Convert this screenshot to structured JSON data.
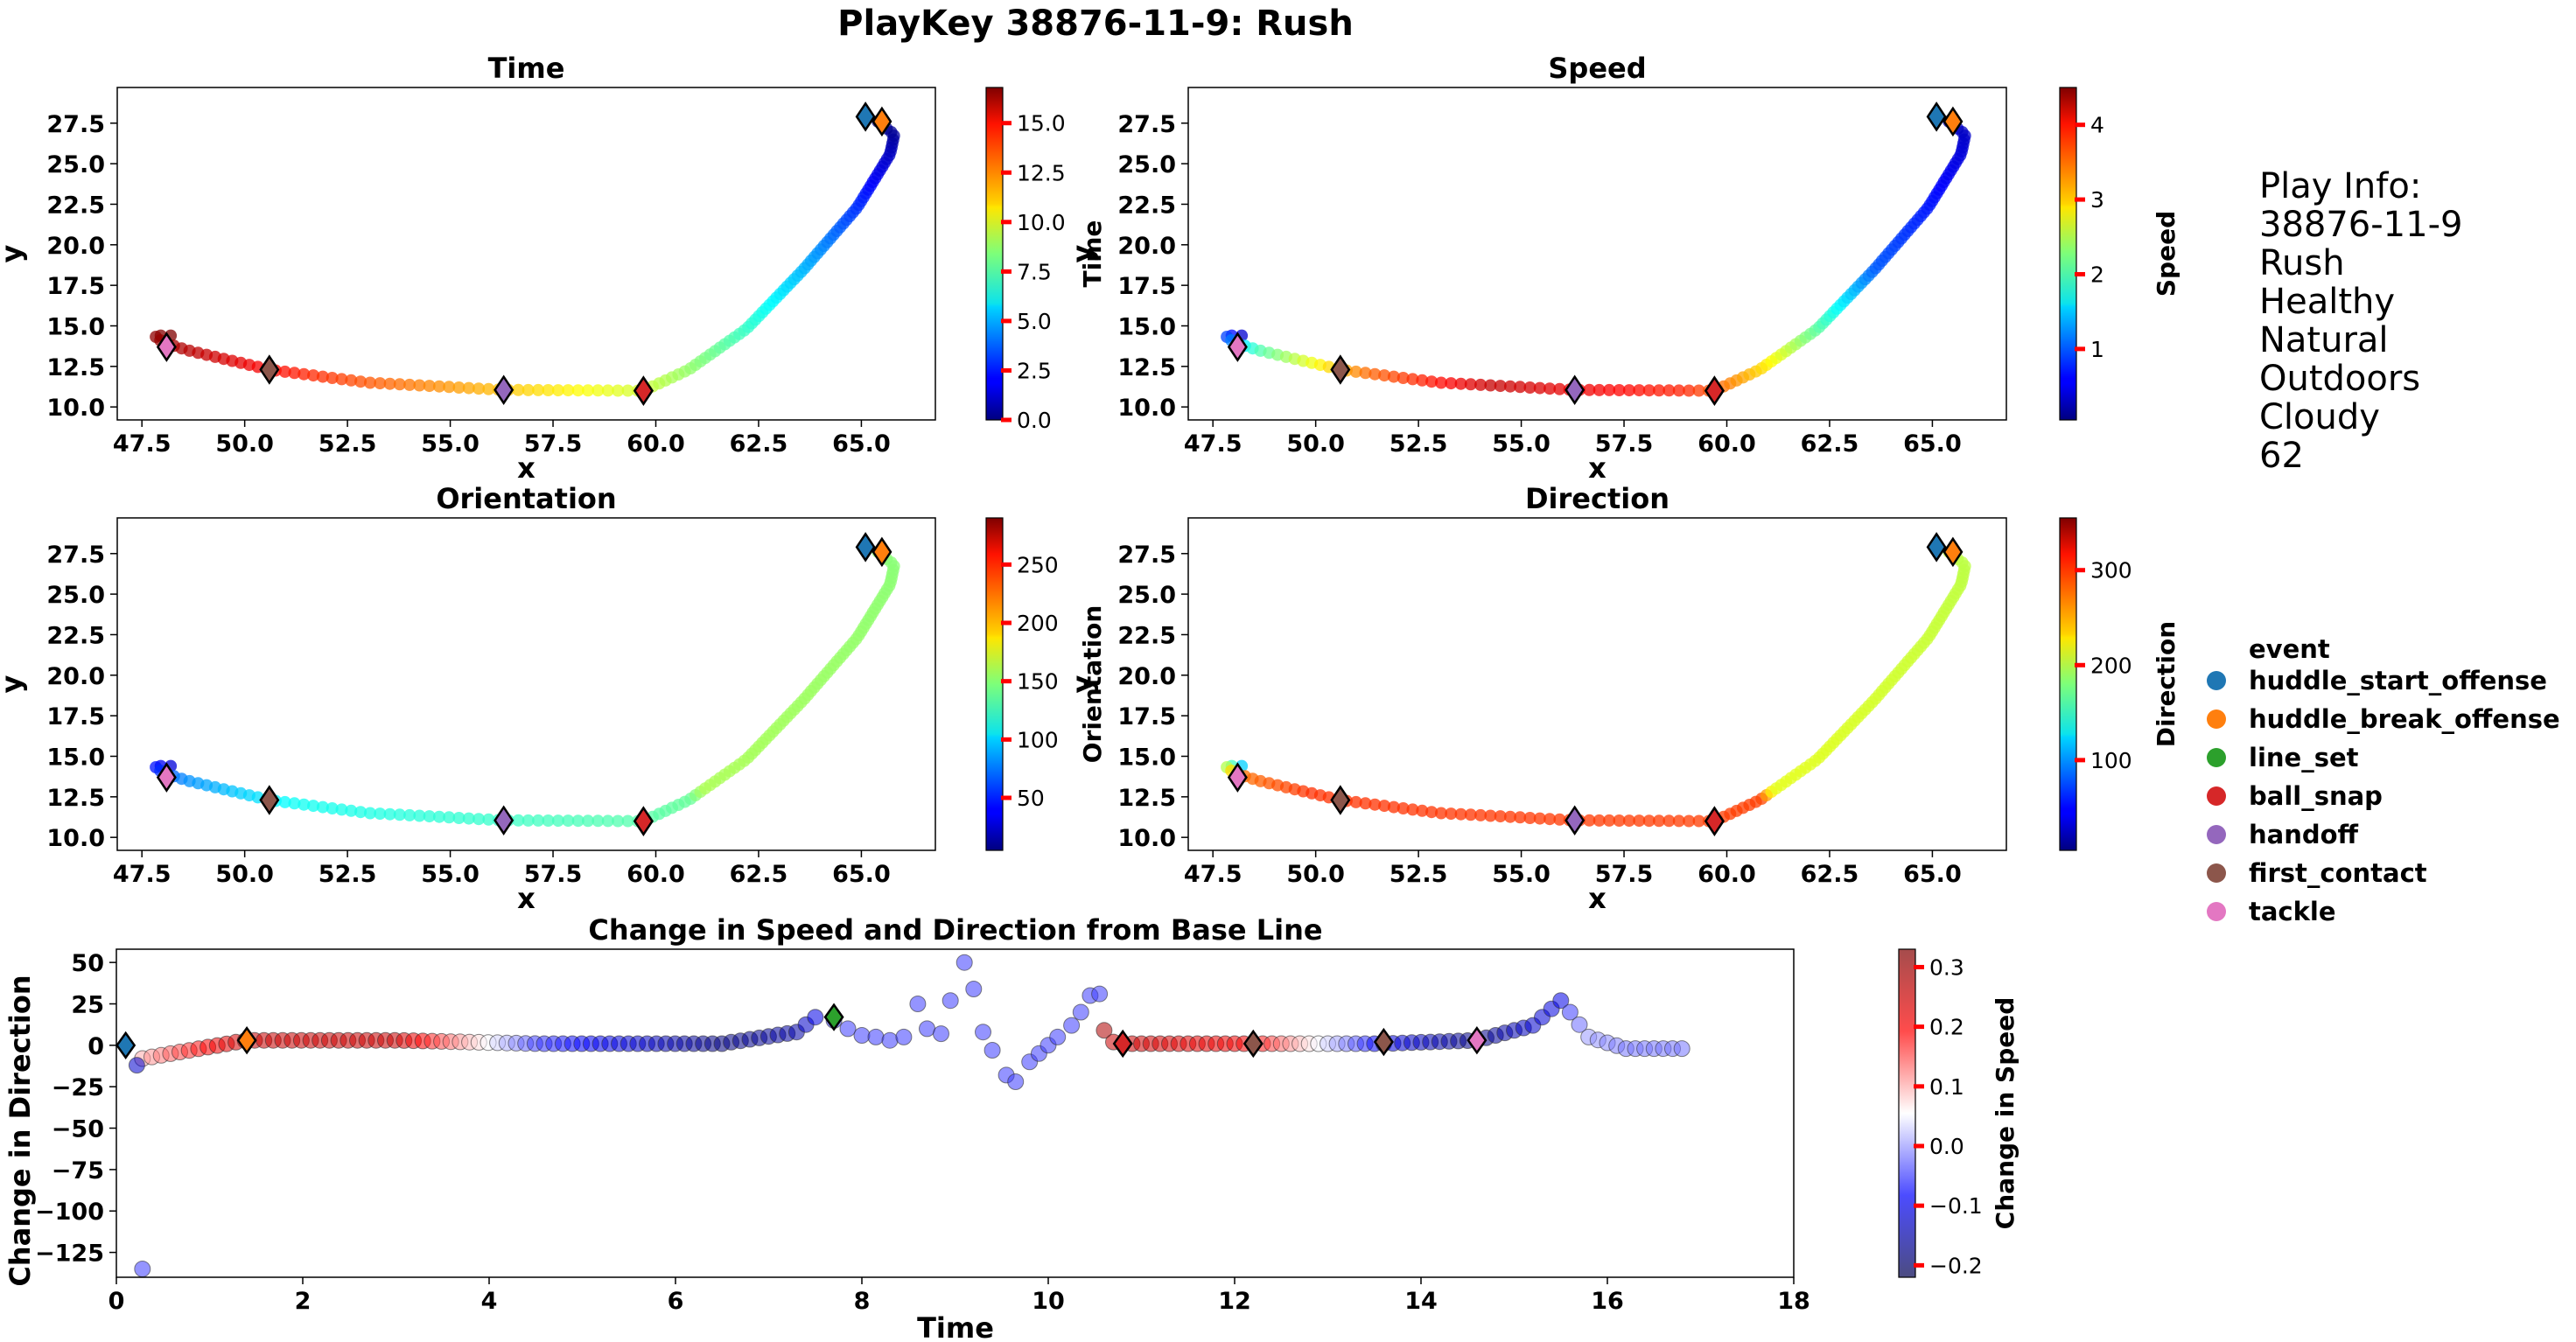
{
  "figure": {
    "title": "PlayKey 38876-11-9: Rush"
  },
  "play_info": {
    "lines": [
      "Play Info:",
      "38876-11-9",
      "Rush",
      "Healthy",
      "Natural",
      "Outdoors",
      "Cloudy",
      "62"
    ]
  },
  "legend": {
    "title": "event",
    "items": [
      {
        "label": "huddle_start_offense",
        "color": "#1f77b4"
      },
      {
        "label": "huddle_break_offense",
        "color": "#ff7f0e"
      },
      {
        "label": "line_set",
        "color": "#2ca02c"
      },
      {
        "label": "ball_snap",
        "color": "#d62728"
      },
      {
        "label": "handoff",
        "color": "#9467bd"
      },
      {
        "label": "first_contact",
        "color": "#8c564b"
      },
      {
        "label": "tackle",
        "color": "#e377c2"
      }
    ]
  },
  "chart_data": [
    {
      "type": "scatter",
      "title": "Time",
      "xlabel": "x",
      "ylabel": "y",
      "xlim": [
        46.9,
        66.8
      ],
      "ylim": [
        9.2,
        29.7
      ],
      "xticks": [
        "47.5",
        "50.0",
        "52.5",
        "55.0",
        "57.5",
        "60.0",
        "62.5",
        "65.0"
      ],
      "yticks": [
        "10.0",
        "12.5",
        "15.0",
        "17.5",
        "20.0",
        "22.5",
        "25.0",
        "27.5"
      ],
      "colorbar": {
        "label": "Time",
        "min": 0.0,
        "max": 16.8,
        "ticks": [
          "0.0",
          "2.5",
          "5.0",
          "7.5",
          "10.0",
          "12.5",
          "15.0"
        ],
        "colormap": "jet"
      },
      "color_variable": "time",
      "grid": false
    },
    {
      "type": "scatter",
      "title": "Speed",
      "xlabel": "x",
      "ylabel": "y",
      "xlim": [
        46.9,
        66.8
      ],
      "ylim": [
        9.2,
        29.7
      ],
      "xticks": [
        "47.5",
        "50.0",
        "52.5",
        "55.0",
        "57.5",
        "60.0",
        "62.5",
        "65.0"
      ],
      "yticks": [
        "10.0",
        "12.5",
        "15.0",
        "17.5",
        "20.0",
        "22.5",
        "25.0",
        "27.5"
      ],
      "colorbar": {
        "label": "Speed",
        "min": 0.05,
        "max": 4.5,
        "ticks": [
          "1",
          "2",
          "3",
          "4"
        ],
        "colormap": "jet"
      },
      "color_variable": "speed",
      "grid": false
    },
    {
      "type": "scatter",
      "title": "Orientation",
      "xlabel": "x",
      "ylabel": "y",
      "xlim": [
        46.9,
        66.8
      ],
      "ylim": [
        9.2,
        29.7
      ],
      "xticks": [
        "47.5",
        "50.0",
        "52.5",
        "55.0",
        "57.5",
        "60.0",
        "62.5",
        "65.0"
      ],
      "yticks": [
        "10.0",
        "12.5",
        "15.0",
        "17.5",
        "20.0",
        "22.5",
        "25.0",
        "27.5"
      ],
      "colorbar": {
        "label": "Orientation",
        "min": 5,
        "max": 290,
        "ticks": [
          "50",
          "100",
          "150",
          "200",
          "250"
        ],
        "colormap": "jet"
      },
      "color_variable": "orientation",
      "grid": false
    },
    {
      "type": "scatter",
      "title": "Direction",
      "xlabel": "x",
      "ylabel": "y",
      "xlim": [
        46.9,
        66.8
      ],
      "ylim": [
        9.2,
        29.7
      ],
      "xticks": [
        "47.5",
        "50.0",
        "52.5",
        "55.0",
        "57.5",
        "60.0",
        "62.5",
        "65.0"
      ],
      "yticks": [
        "10.0",
        "12.5",
        "15.0",
        "17.5",
        "20.0",
        "22.5",
        "25.0",
        "27.5"
      ],
      "colorbar": {
        "label": "Direction",
        "min": 5,
        "max": 355,
        "ticks": [
          "100",
          "200",
          "300"
        ],
        "colormap": "jet"
      },
      "color_variable": "direction",
      "grid": false
    },
    {
      "type": "scatter",
      "title": "Change in Speed and Direction from Base Line",
      "xlabel": "Time",
      "ylabel": "Change in Direction",
      "xlim": [
        0,
        18
      ],
      "ylim": [
        -140,
        58
      ],
      "xticks": [
        "0",
        "2",
        "4",
        "6",
        "8",
        "10",
        "12",
        "14",
        "16",
        "18"
      ],
      "yticks": [
        "-125",
        "-100",
        "-75",
        "-50",
        "-25",
        "0",
        "25",
        "50"
      ],
      "colorbar": {
        "label": "Change in Speed",
        "min": -0.22,
        "max": 0.33,
        "ticks": [
          "-0.2",
          "-0.1",
          "0.0",
          "0.1",
          "0.2",
          "0.3"
        ],
        "colormap": "seismic"
      },
      "grid": false
    }
  ],
  "trajectory": {
    "path_x": [
      48.2,
      47.8,
      48.0,
      48.6,
      50.6,
      53.0,
      56.3,
      59.7,
      60.8,
      62.2,
      63.6,
      64.9,
      65.7,
      65.8,
      65.4
    ],
    "path_y": [
      14.4,
      14.4,
      14.0,
      13.5,
      12.3,
      11.5,
      11.05,
      11.0,
      12.3,
      14.8,
      18.5,
      22.3,
      25.6,
      26.8,
      27.6
    ],
    "events_xy": [
      {
        "event": "huddle_start_offense",
        "x": 65.1,
        "y": 27.9
      },
      {
        "event": "huddle_break_offense",
        "x": 65.5,
        "y": 27.6
      },
      {
        "event": "line_set",
        "x": 59.7,
        "y": 11.0
      },
      {
        "event": "ball_snap",
        "x": 59.7,
        "y": 11.0
      },
      {
        "event": "handoff",
        "x": 56.3,
        "y": 11.05
      },
      {
        "event": "first_contact",
        "x": 50.6,
        "y": 12.3
      },
      {
        "event": "tackle",
        "x": 48.1,
        "y": 13.7
      }
    ],
    "time_range": [
      0.0,
      16.8
    ],
    "speed_profile_t": [
      0.0,
      0.3,
      0.45,
      0.6,
      0.75,
      0.85,
      0.95,
      1.0
    ],
    "speed_profile_v": [
      0.3,
      1.0,
      2.3,
      3.8,
      4.2,
      3.5,
      2.0,
      0.4
    ],
    "orientation_profile_t": [
      0.0,
      0.5,
      0.52,
      0.85,
      0.95,
      1.0
    ],
    "orientation_profile_v": [
      150,
      160,
      140,
      115,
      80,
      30
    ],
    "direction_profile_t": [
      0.0,
      0.5,
      0.52,
      0.9,
      0.97,
      1.0
    ],
    "direction_profile_v": [
      200,
      215,
      290,
      295,
      270,
      120
    ]
  },
  "change_series": {
    "segments": [
      {
        "t": [
          0.28,
          1.4,
          3.0,
          4.5,
          6.5,
          7.3,
          7.5
        ],
        "d": [
          -8,
          3,
          3,
          1,
          1,
          8,
          17
        ],
        "s": [
          0.1,
          0.25,
          0.25,
          -0.05,
          -0.18,
          -0.15,
          -0.1
        ]
      },
      {
        "t": [
          10.8,
          12.2,
          13.6,
          14.6,
          15.2,
          15.5
        ],
        "d": [
          1,
          1,
          1,
          3,
          12,
          27
        ],
        "s": [
          0.25,
          0.2,
          -0.1,
          -0.18,
          -0.12,
          -0.1
        ]
      },
      {
        "t": [
          15.6,
          15.8,
          16.2,
          16.8
        ],
        "d": [
          20,
          5,
          -2,
          -2
        ],
        "s": [
          -0.05,
          0.0,
          -0.02,
          -0.02
        ]
      }
    ],
    "scattered": [
      {
        "t": 0.22,
        "d": -12,
        "s": -0.12
      },
      {
        "t": 0.28,
        "d": -135,
        "s": -0.05
      },
      {
        "t": 7.7,
        "d": 15,
        "s": -0.05
      },
      {
        "t": 7.85,
        "d": 10,
        "s": -0.05
      },
      {
        "t": 8.0,
        "d": 6,
        "s": -0.05
      },
      {
        "t": 8.15,
        "d": 5,
        "s": -0.05
      },
      {
        "t": 8.3,
        "d": 3,
        "s": -0.05
      },
      {
        "t": 8.45,
        "d": 5,
        "s": -0.05
      },
      {
        "t": 8.6,
        "d": 25,
        "s": -0.05
      },
      {
        "t": 8.7,
        "d": 10,
        "s": -0.05
      },
      {
        "t": 8.85,
        "d": 7,
        "s": -0.05
      },
      {
        "t": 8.95,
        "d": 27,
        "s": -0.05
      },
      {
        "t": 9.1,
        "d": 50,
        "s": -0.05
      },
      {
        "t": 9.2,
        "d": 34,
        "s": -0.05
      },
      {
        "t": 9.3,
        "d": 8,
        "s": -0.05
      },
      {
        "t": 9.4,
        "d": -3,
        "s": -0.05
      },
      {
        "t": 9.55,
        "d": -18,
        "s": -0.05
      },
      {
        "t": 9.65,
        "d": -22,
        "s": -0.05
      },
      {
        "t": 9.8,
        "d": -10,
        "s": -0.05
      },
      {
        "t": 9.9,
        "d": -5,
        "s": -0.05
      },
      {
        "t": 10.0,
        "d": 0,
        "s": -0.05
      },
      {
        "t": 10.1,
        "d": 5,
        "s": -0.05
      },
      {
        "t": 10.25,
        "d": 12,
        "s": -0.05
      },
      {
        "t": 10.35,
        "d": 20,
        "s": -0.05
      },
      {
        "t": 10.45,
        "d": 30,
        "s": -0.05
      },
      {
        "t": 10.55,
        "d": 31,
        "s": -0.05
      },
      {
        "t": 10.6,
        "d": 9,
        "s": 0.28
      },
      {
        "t": 10.7,
        "d": 2,
        "s": 0.25
      }
    ],
    "events": [
      {
        "event": "huddle_start_offense",
        "t": 0.1,
        "d": 0
      },
      {
        "event": "huddle_break_offense",
        "t": 1.4,
        "d": 3
      },
      {
        "event": "line_set",
        "t": 7.7,
        "d": 17
      },
      {
        "event": "ball_snap",
        "t": 10.8,
        "d": 1
      },
      {
        "event": "first_contact",
        "t": 12.2,
        "d": 1
      },
      {
        "event": "first_contact",
        "t": 13.6,
        "d": 2
      },
      {
        "event": "tackle",
        "t": 14.6,
        "d": 3
      }
    ]
  }
}
